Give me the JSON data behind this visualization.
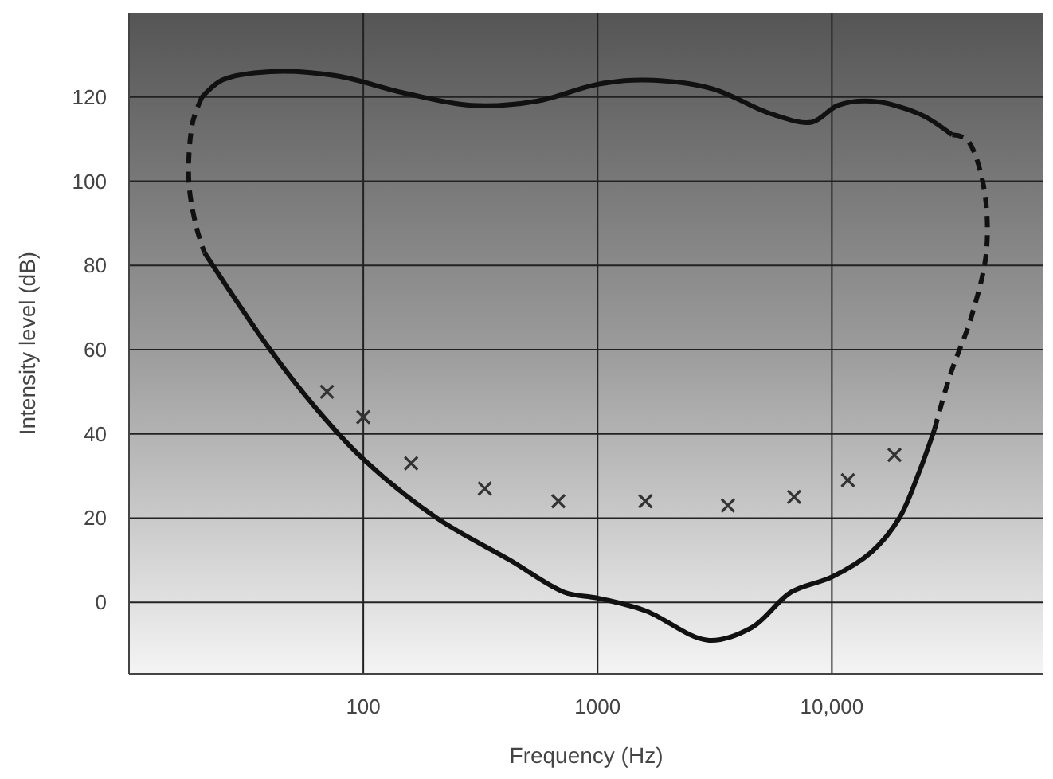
{
  "chart_data": {
    "type": "line",
    "xlabel": "Frequency (Hz)",
    "ylabel": "Intensity level (dB)",
    "log": "x",
    "grid": true,
    "xlim": [
      10,
      80000
    ],
    "xticks": [
      100,
      1000,
      {
        "value": 10000,
        "label": "10,000"
      }
    ],
    "ylim": [
      -17,
      140
    ],
    "yticks": [
      0,
      20,
      40,
      60,
      80,
      100,
      120
    ],
    "series": [
      {
        "color": "#111111",
        "line_style": "solid",
        "x": [
          21,
          40,
          63,
          100,
          206,
          423,
          720,
          1000,
          1600,
          2950,
          4550,
          6700,
          10000,
          14800,
          19400,
          23600,
          27400
        ],
        "values": [
          83,
          60,
          46,
          34,
          20,
          10,
          2.4,
          1,
          -2,
          -9,
          -6,
          2.4,
          6,
          12,
          20,
          31,
          41
        ]
      },
      {
        "color": "#111111",
        "line_style": "dashed",
        "x": [
          27400,
          32000,
          39500,
          45800,
          44000,
          37500,
          32600
        ],
        "values": [
          41,
          54,
          68,
          84,
          100,
          110,
          111
        ]
      },
      {
        "color": "#111111",
        "line_style": "solid",
        "x": [
          32600,
          23600,
          14800,
          10600,
          8200,
          5500,
          3060,
          1580,
          1000,
          550,
          290,
          148,
          77,
          40,
          25,
          20.5
        ],
        "values": [
          111,
          116,
          119,
          118,
          114,
          116,
          122,
          124,
          123,
          119,
          118,
          121,
          125,
          126,
          124,
          120
        ]
      },
      {
        "color": "#111111",
        "line_style": "dashed",
        "x": [
          20.5,
          18.7,
          18,
          19.4,
          21
        ],
        "values": [
          120,
          114,
          100,
          89,
          83
        ]
      },
      {
        "type": "scatter",
        "marker": "cross",
        "color": "#333333",
        "x": [
          70,
          100,
          160,
          330,
          680,
          1600,
          3600,
          6900,
          11700,
          18500
        ],
        "values": [
          50,
          44,
          33,
          27,
          24,
          24,
          23,
          25,
          29,
          35
        ]
      }
    ]
  }
}
